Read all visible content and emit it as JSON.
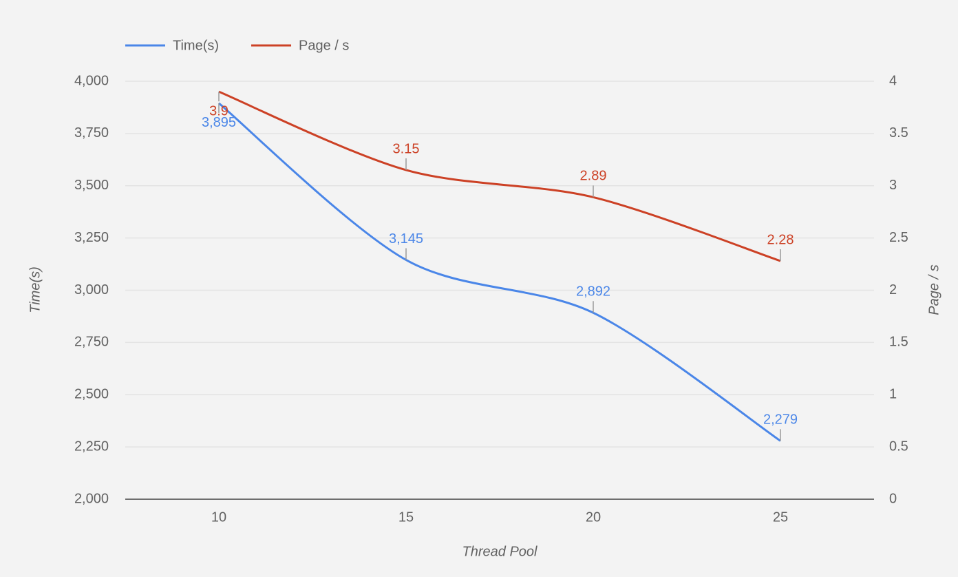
{
  "chart_data": {
    "type": "line",
    "categories": [
      "10",
      "15",
      "20",
      "25"
    ],
    "x_label": "Thread Pool",
    "y_label": "Time(s)",
    "y2_label": "Page / s",
    "series": [
      {
        "name": "Time(s)",
        "color": "#4a86e8",
        "values": [
          3895,
          3145,
          2892,
          2279
        ],
        "value_labels": [
          "3,895",
          "3,145",
          "2,892",
          "2,279"
        ]
      },
      {
        "name": "Page / s",
        "color": "#cc4125",
        "axis": "y2",
        "values": [
          3.9,
          3.15,
          2.89,
          2.28
        ]
      }
    ],
    "ylim": [
      2000,
      4000
    ],
    "yticks": [
      {
        "value": 2000,
        "label": "2,000"
      },
      {
        "value": 2250,
        "label": "2,250"
      },
      {
        "value": 2500,
        "label": "2,500"
      },
      {
        "value": 2750,
        "label": "2,750"
      },
      {
        "value": 3000,
        "label": "3,000"
      },
      {
        "value": 3250,
        "label": "3,250"
      },
      {
        "value": 3500,
        "label": "3,500"
      },
      {
        "value": 3750,
        "label": "3,750"
      },
      {
        "value": 4000,
        "label": "4,000"
      }
    ],
    "y2lim": [
      0,
      4
    ],
    "y2ticks": [
      0,
      0.5,
      1,
      1.5,
      2,
      2.5,
      3,
      3.5,
      4
    ],
    "grid": true,
    "legend": "top"
  }
}
